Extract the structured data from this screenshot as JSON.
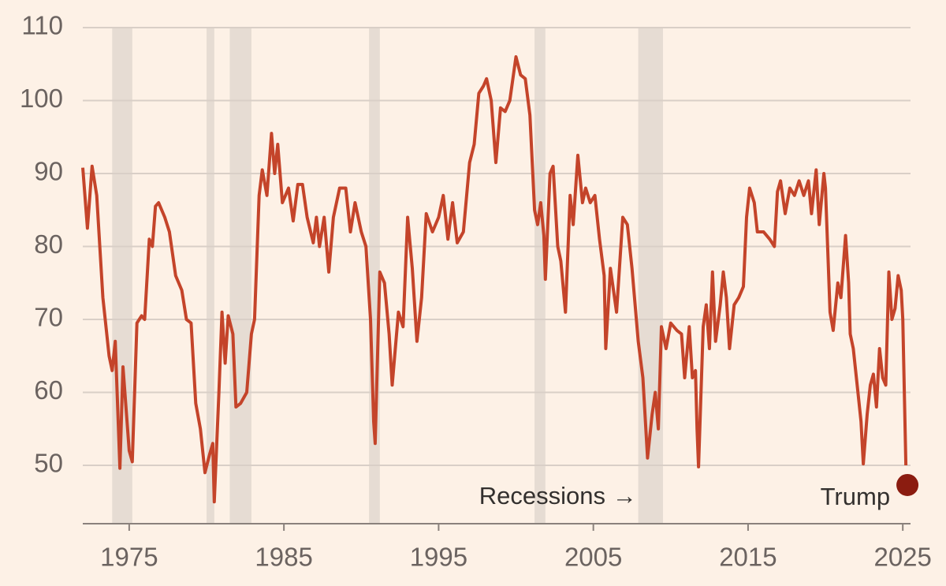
{
  "chart_data": {
    "type": "line",
    "color": "#c4442a",
    "grid": true,
    "xlim": [
      1972,
      2025.5
    ],
    "ylim": [
      42,
      110
    ],
    "xticks": [
      1975,
      1985,
      1995,
      2005,
      2015,
      2025
    ],
    "yticks": [
      50,
      60,
      70,
      80,
      90,
      100,
      110
    ],
    "recessions": [
      {
        "start": 1973.9,
        "end": 1975.2
      },
      {
        "start": 1980.0,
        "end": 1980.5
      },
      {
        "start": 1981.5,
        "end": 1982.9
      },
      {
        "start": 1990.5,
        "end": 1991.2
      },
      {
        "start": 2001.2,
        "end": 2001.9
      },
      {
        "start": 2007.9,
        "end": 2009.5
      }
    ],
    "recession_label": "Recessions →",
    "annotation": {
      "text": "Trump",
      "x": 2025.3,
      "y": 47.3,
      "color": "#8b1c10"
    },
    "x": [
      1972.0,
      1972.3,
      1972.6,
      1972.9,
      1973.3,
      1973.7,
      1973.9,
      1974.1,
      1974.4,
      1974.6,
      1975.0,
      1975.2,
      1975.5,
      1975.8,
      1976.0,
      1976.3,
      1976.5,
      1976.7,
      1976.9,
      1977.3,
      1977.6,
      1978.0,
      1978.4,
      1978.7,
      1979.0,
      1979.3,
      1979.6,
      1979.9,
      1980.2,
      1980.4,
      1980.5,
      1980.8,
      1981.0,
      1981.2,
      1981.4,
      1981.7,
      1981.9,
      1982.2,
      1982.6,
      1982.9,
      1983.1,
      1983.4,
      1983.6,
      1983.9,
      1984.2,
      1984.4,
      1984.6,
      1984.9,
      1985.3,
      1985.6,
      1985.9,
      1986.2,
      1986.5,
      1986.9,
      1987.1,
      1987.3,
      1987.6,
      1987.9,
      1988.2,
      1988.6,
      1989.0,
      1989.3,
      1989.6,
      1990.0,
      1990.3,
      1990.6,
      1990.8,
      1990.9,
      1991.2,
      1991.5,
      1991.8,
      1992.0,
      1992.4,
      1992.7,
      1993.0,
      1993.3,
      1993.6,
      1993.9,
      1994.2,
      1994.6,
      1995.0,
      1995.3,
      1995.6,
      1995.9,
      1996.2,
      1996.6,
      1997.0,
      1997.3,
      1997.6,
      1997.9,
      1998.1,
      1998.4,
      1998.7,
      1999.0,
      1999.3,
      1999.6,
      2000.0,
      2000.3,
      2000.6,
      2000.9,
      2001.2,
      2001.4,
      2001.6,
      2001.8,
      2001.9,
      2002.2,
      2002.4,
      2002.7,
      2002.9,
      2003.2,
      2003.5,
      2003.7,
      2004.0,
      2004.3,
      2004.5,
      2004.8,
      2005.1,
      2005.4,
      2005.7,
      2005.8,
      2006.1,
      2006.5,
      2006.9,
      2007.2,
      2007.5,
      2007.9,
      2008.2,
      2008.5,
      2008.8,
      2009.0,
      2009.2,
      2009.4,
      2009.7,
      2010.0,
      2010.4,
      2010.7,
      2010.9,
      2011.2,
      2011.4,
      2011.6,
      2011.7,
      2011.8,
      2012.1,
      2012.3,
      2012.5,
      2012.7,
      2012.9,
      2013.2,
      2013.4,
      2013.6,
      2013.8,
      2014.1,
      2014.4,
      2014.7,
      2014.9,
      2015.1,
      2015.4,
      2015.6,
      2016.0,
      2016.4,
      2016.7,
      2016.9,
      2017.1,
      2017.4,
      2017.7,
      2018.0,
      2018.3,
      2018.6,
      2018.9,
      2019.1,
      2019.4,
      2019.6,
      2019.9,
      2020.0,
      2020.3,
      2020.5,
      2020.8,
      2021.0,
      2021.3,
      2021.5,
      2021.6,
      2021.8,
      2022.1,
      2022.3,
      2022.45,
      2022.7,
      2022.9,
      2023.1,
      2023.3,
      2023.5,
      2023.7,
      2023.9,
      2024.1,
      2024.3,
      2024.5,
      2024.7,
      2024.9,
      2025.0,
      2025.2
    ],
    "values": [
      90.8,
      82.5,
      91,
      87,
      73,
      65,
      63,
      67,
      49.6,
      63.5,
      52,
      50.5,
      69.5,
      70.5,
      70,
      81,
      80,
      85.5,
      86,
      84,
      82,
      76,
      74,
      70,
      69.5,
      58.5,
      55,
      49,
      51.5,
      53,
      45,
      60,
      71,
      64,
      70.5,
      68,
      58,
      58.5,
      60,
      68,
      70,
      87,
      90.5,
      87,
      95.5,
      90,
      94,
      86,
      88,
      83.5,
      88.5,
      88.5,
      84,
      80.5,
      84,
      80,
      84,
      76.5,
      84,
      88,
      88,
      82,
      86,
      82,
      80,
      70,
      56,
      53,
      76.5,
      75,
      68,
      61,
      71,
      69,
      84,
      77,
      67,
      73,
      84.5,
      82,
      84,
      87,
      81,
      86,
      80.5,
      82,
      91.5,
      94,
      101,
      102,
      103,
      100,
      91.5,
      99,
      98.5,
      100,
      106,
      103.5,
      103,
      98,
      85,
      83,
      86,
      81.5,
      75.5,
      90,
      91,
      80,
      78,
      71,
      87,
      83,
      92.5,
      86,
      88,
      86,
      87,
      81,
      76,
      66,
      77,
      71,
      84,
      83,
      77,
      67,
      62,
      51,
      57,
      60,
      55,
      69,
      66,
      69.5,
      68.5,
      68,
      62,
      69,
      62,
      63,
      55,
      49.8,
      69,
      72,
      66,
      76.5,
      67,
      72,
      76.5,
      73,
      66,
      72,
      73,
      74.5,
      84,
      88,
      86,
      82,
      82,
      81,
      80,
      87.5,
      89,
      84.5,
      88,
      87,
      89,
      87,
      89,
      84.5,
      90.5,
      83,
      90,
      88,
      71,
      68.5,
      75,
      73,
      81.5,
      75,
      68,
      66,
      60,
      56,
      50.2,
      57,
      61,
      62.5,
      58,
      66,
      62,
      61,
      76.5,
      70,
      71.5,
      76,
      74,
      70,
      50
    ]
  }
}
